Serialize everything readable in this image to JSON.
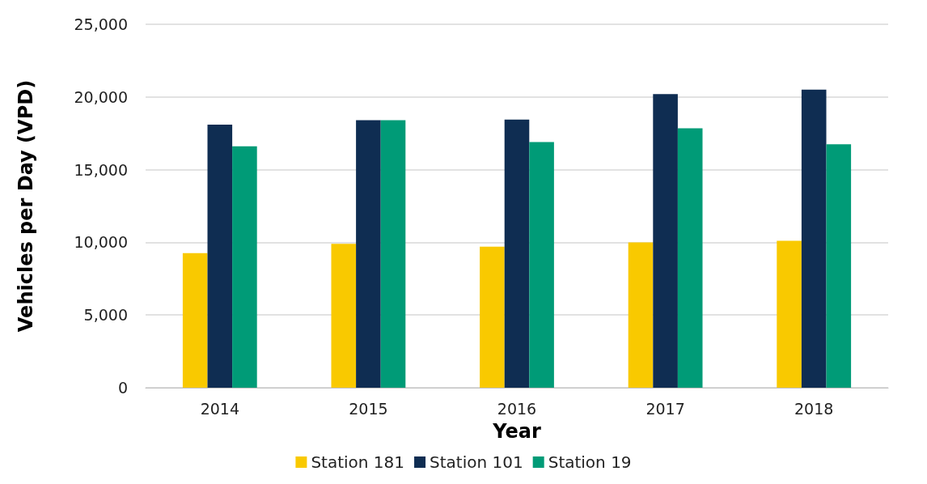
{
  "chart_data": {
    "type": "bar",
    "xlabel": "Year",
    "ylabel": "Vehicles per Day (VPD)",
    "categories": [
      "2014",
      "2015",
      "2016",
      "2017",
      "2018"
    ],
    "series": [
      {
        "name": "Station 181",
        "color": "#f9c900",
        "values": [
          9250,
          9900,
          9700,
          10000,
          10100
        ]
      },
      {
        "name": "Station 101",
        "color": "#0f2d52",
        "values": [
          18100,
          18400,
          18450,
          20200,
          20500
        ]
      },
      {
        "name": "Station 19",
        "color": "#009b77",
        "values": [
          16600,
          18400,
          16900,
          17850,
          16750
        ]
      }
    ],
    "ylim": [
      0,
      25000
    ],
    "yticks": [
      0,
      {
        "value": 5000,
        "label": "5,000"
      },
      {
        "value": 10000,
        "label": "10,000"
      },
      {
        "value": 15000,
        "label": "15,000"
      },
      {
        "value": 20000,
        "label": "20,000"
      },
      {
        "value": 25000,
        "label": "25,000"
      }
    ],
    "grid": "y",
    "legend": "bottom"
  }
}
